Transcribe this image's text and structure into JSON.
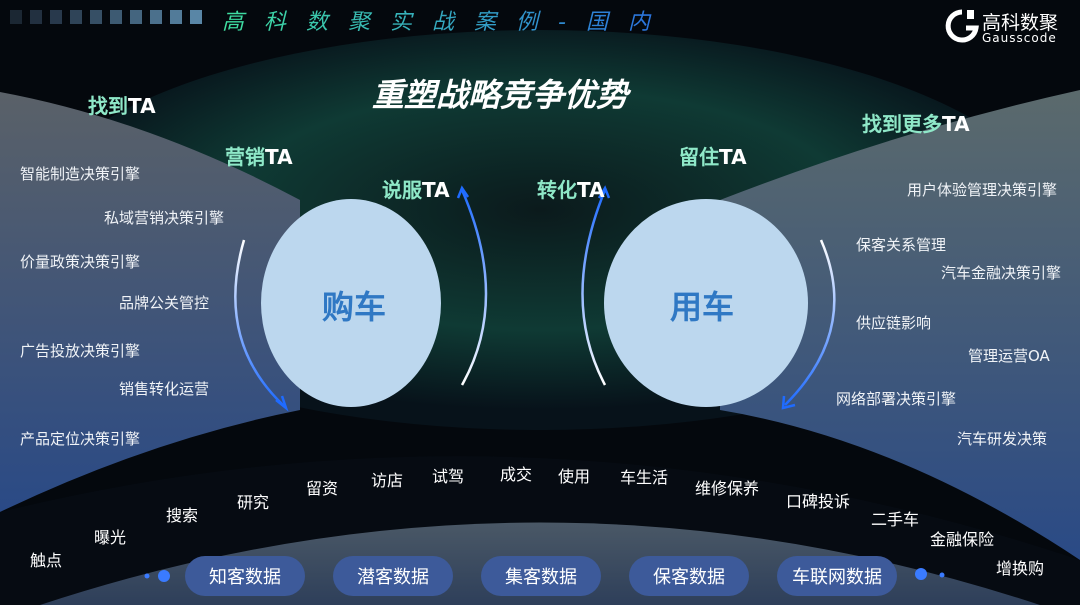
{
  "header": {
    "title": "高科数聚实战案例-国内",
    "logo_cn": "高科数聚",
    "logo_en": "Gausscode"
  },
  "main_title": "重塑战略竞争优势",
  "ta_labels": {
    "find": "找到",
    "find_more": "找到更多",
    "marketing": "营销",
    "persuade": "说服",
    "convert": "转化",
    "retain": "留住",
    "suffix": "TA"
  },
  "circles": {
    "buy": "购车",
    "use": "用车"
  },
  "left_items": [
    "智能制造决策引擎",
    "私域营销决策引擎",
    "价量政策决策引擎",
    "品牌公关管控",
    "广告投放决策引擎",
    "销售转化运营",
    "产品定位决策引擎"
  ],
  "right_items": [
    "用户体验管理决策引擎",
    "保客关系管理",
    "汽车金融决策引擎",
    "供应链影响",
    "管理运营OA",
    "网络部署决策引擎",
    "汽车研发决策"
  ],
  "journey": [
    "触点",
    "曝光",
    "搜索",
    "研究",
    "留资",
    "访店",
    "试驾",
    "成交",
    "使用",
    "车生活",
    "维修保养",
    "口碑投诉",
    "二手车",
    "金融保险",
    "增换购"
  ],
  "data_pills": [
    "知客数据",
    "潜客数据",
    "集客数据",
    "保客数据",
    "车联网数据"
  ],
  "colors": {
    "accent_green": "#8fe8c8",
    "circle_fill": "#bcd7ee",
    "circle_text": "#2f78c4",
    "arrow_blue": "#1f6bff",
    "pill": "#3d5a9a"
  }
}
